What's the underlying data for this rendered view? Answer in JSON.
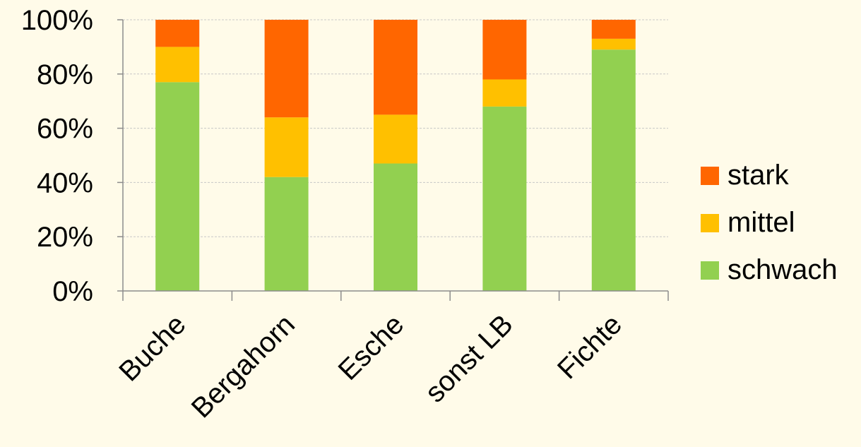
{
  "chart_data": {
    "type": "bar",
    "stacked": true,
    "percent_axis": true,
    "categories": [
      "Buche",
      "Bergahorn",
      "Esche",
      "sonst LB",
      "Fichte"
    ],
    "series": [
      {
        "name": "schwach",
        "color": "#92d050",
        "values": [
          77,
          42,
          47,
          68,
          89
        ]
      },
      {
        "name": "mittel",
        "color": "#ffc000",
        "values": [
          13,
          22,
          18,
          10,
          4
        ]
      },
      {
        "name": "stark",
        "color": "#ff6600",
        "values": [
          10,
          36,
          35,
          22,
          7
        ]
      }
    ],
    "yticks": [
      "0%",
      "20%",
      "40%",
      "60%",
      "80%",
      "100%"
    ],
    "ylim": [
      0,
      100
    ],
    "grid": true,
    "legend_position": "right",
    "legend_order": [
      "stark",
      "mittel",
      "schwach"
    ],
    "title": "",
    "xlabel": "",
    "ylabel": ""
  }
}
